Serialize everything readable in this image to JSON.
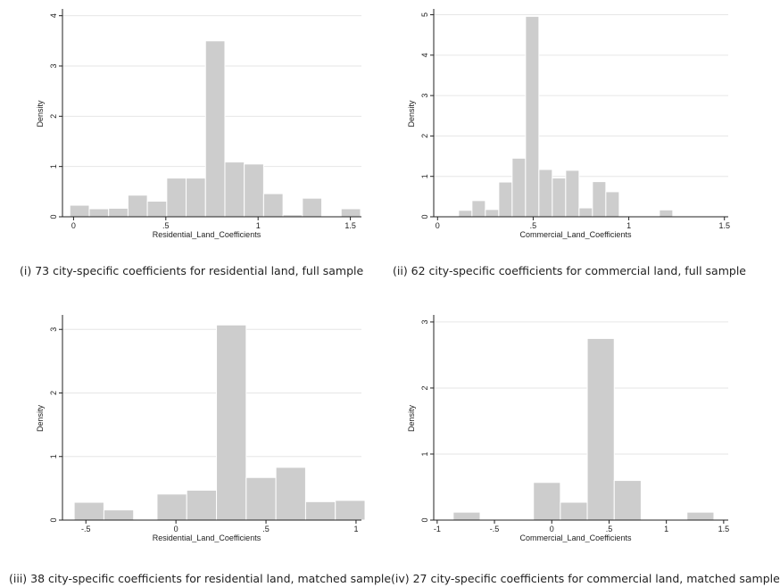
{
  "chart_data": [
    {
      "type": "bar",
      "subtype": "histogram",
      "xlabel": "Residential_Land_Coefficients",
      "ylabel": "Density",
      "xlim": [
        -0.06,
        1.56
      ],
      "ylim": [
        0,
        4.1
      ],
      "xticks": [
        0,
        0.5,
        1,
        1.5
      ],
      "xtick_labels": [
        "0",
        ".5",
        "1",
        "1.5"
      ],
      "yticks": [
        0,
        1,
        2,
        3,
        4
      ],
      "ytick_labels": [
        "0",
        "1",
        "2",
        "3",
        "4"
      ],
      "grid": true,
      "bins": [
        {
          "x0": -0.02,
          "x1": 0.085,
          "density": 0.23
        },
        {
          "x0": 0.085,
          "x1": 0.19,
          "density": 0.16
        },
        {
          "x0": 0.19,
          "x1": 0.295,
          "density": 0.17
        },
        {
          "x0": 0.295,
          "x1": 0.4,
          "density": 0.43
        },
        {
          "x0": 0.4,
          "x1": 0.505,
          "density": 0.31
        },
        {
          "x0": 0.505,
          "x1": 0.61,
          "density": 0.77
        },
        {
          "x0": 0.61,
          "x1": 0.715,
          "density": 0.77
        },
        {
          "x0": 0.715,
          "x1": 0.82,
          "density": 3.5
        },
        {
          "x0": 0.82,
          "x1": 0.925,
          "density": 1.09
        },
        {
          "x0": 0.925,
          "x1": 1.03,
          "density": 1.05
        },
        {
          "x0": 1.03,
          "x1": 1.135,
          "density": 0.46
        },
        {
          "x0": 1.135,
          "x1": 1.24,
          "density": 0.04
        },
        {
          "x0": 1.24,
          "x1": 1.345,
          "density": 0.37
        },
        {
          "x0": 1.45,
          "x1": 1.555,
          "density": 0.16
        }
      ]
    },
    {
      "type": "bar",
      "subtype": "histogram",
      "xlabel": "Commercial_Land_Coefficients",
      "ylabel": "Density",
      "xlim": [
        -0.02,
        1.52
      ],
      "ylim": [
        0,
        5.1
      ],
      "xticks": [
        0,
        0.5,
        1,
        1.5
      ],
      "xtick_labels": [
        "0",
        ".5",
        "1",
        "1.5"
      ],
      "yticks": [
        0,
        1,
        2,
        3,
        4,
        5
      ],
      "ytick_labels": [
        "0",
        "1",
        "2",
        "3",
        "4",
        "5"
      ],
      "grid": true,
      "bins": [
        {
          "x0": 0.11,
          "x1": 0.18,
          "density": 0.16
        },
        {
          "x0": 0.18,
          "x1": 0.25,
          "density": 0.4
        },
        {
          "x0": 0.25,
          "x1": 0.32,
          "density": 0.18
        },
        {
          "x0": 0.32,
          "x1": 0.39,
          "density": 0.86
        },
        {
          "x0": 0.39,
          "x1": 0.46,
          "density": 1.45
        },
        {
          "x0": 0.46,
          "x1": 0.53,
          "density": 4.96
        },
        {
          "x0": 0.53,
          "x1": 0.6,
          "density": 1.17
        },
        {
          "x0": 0.6,
          "x1": 0.67,
          "density": 0.96
        },
        {
          "x0": 0.67,
          "x1": 0.74,
          "density": 1.15
        },
        {
          "x0": 0.74,
          "x1": 0.81,
          "density": 0.22
        },
        {
          "x0": 0.81,
          "x1": 0.88,
          "density": 0.87
        },
        {
          "x0": 0.88,
          "x1": 0.95,
          "density": 0.62
        },
        {
          "x0": 1.16,
          "x1": 1.23,
          "density": 0.17
        }
      ]
    },
    {
      "type": "bar",
      "subtype": "histogram",
      "xlabel": "Residential_Land_Coefficients",
      "ylabel": "Density",
      "xlim": [
        -0.63,
        1.03
      ],
      "ylim": [
        0,
        3.2
      ],
      "xticks": [
        -0.5,
        0,
        0.5,
        1
      ],
      "xtick_labels": [
        "-.5",
        "0",
        ".5",
        "1"
      ],
      "yticks": [
        0,
        1,
        2,
        3
      ],
      "ytick_labels": [
        "0",
        "1",
        "2",
        "3"
      ],
      "grid": true,
      "bins": [
        {
          "x0": -0.565,
          "x1": -0.4,
          "density": 0.28
        },
        {
          "x0": -0.4,
          "x1": -0.235,
          "density": 0.16
        },
        {
          "x0": -0.105,
          "x1": 0.06,
          "density": 0.41
        },
        {
          "x0": 0.06,
          "x1": 0.225,
          "density": 0.47
        },
        {
          "x0": 0.225,
          "x1": 0.39,
          "density": 3.07
        },
        {
          "x0": 0.39,
          "x1": 0.555,
          "density": 0.67
        },
        {
          "x0": 0.555,
          "x1": 0.72,
          "density": 0.83
        },
        {
          "x0": 0.72,
          "x1": 0.885,
          "density": 0.29
        },
        {
          "x0": 0.885,
          "x1": 1.05,
          "density": 0.31
        }
      ]
    },
    {
      "type": "bar",
      "subtype": "histogram",
      "xlabel": "Commercial_Land_Coefficients",
      "ylabel": "Density",
      "xlim": [
        -1.03,
        1.54
      ],
      "ylim": [
        0,
        3.08
      ],
      "xticks": [
        -1,
        -0.5,
        0,
        0.5,
        1,
        1.5
      ],
      "xtick_labels": [
        "-1",
        "-.5",
        "0",
        ".5",
        "1",
        "1.5"
      ],
      "yticks": [
        0,
        1,
        2,
        3
      ],
      "ytick_labels": [
        "0",
        "1",
        "2",
        "3"
      ],
      "grid": true,
      "bins": [
        {
          "x0": -0.86,
          "x1": -0.625,
          "density": 0.12
        },
        {
          "x0": -0.16,
          "x1": 0.075,
          "density": 0.57
        },
        {
          "x0": 0.075,
          "x1": 0.31,
          "density": 0.27
        },
        {
          "x0": 0.31,
          "x1": 0.545,
          "density": 2.75
        },
        {
          "x0": 0.545,
          "x1": 0.78,
          "density": 0.6
        },
        {
          "x0": 1.18,
          "x1": 1.415,
          "density": 0.12
        }
      ]
    }
  ],
  "captions": [
    "(i) 73 city-specific coefficients for residential land, full sample",
    "(ii) 62 city-specific coefficients for commercial land, full sample",
    "(iii) 38 city-specific coefficients for residential land, matched sample",
    "(iv) 27 city-specific coefficients for commercial land, matched sample"
  ],
  "colors": {
    "bar_fill": "#cdcdcd",
    "bar_edge": "#ffffff",
    "grid": "#e6e6e6",
    "axis": "#222222"
  }
}
